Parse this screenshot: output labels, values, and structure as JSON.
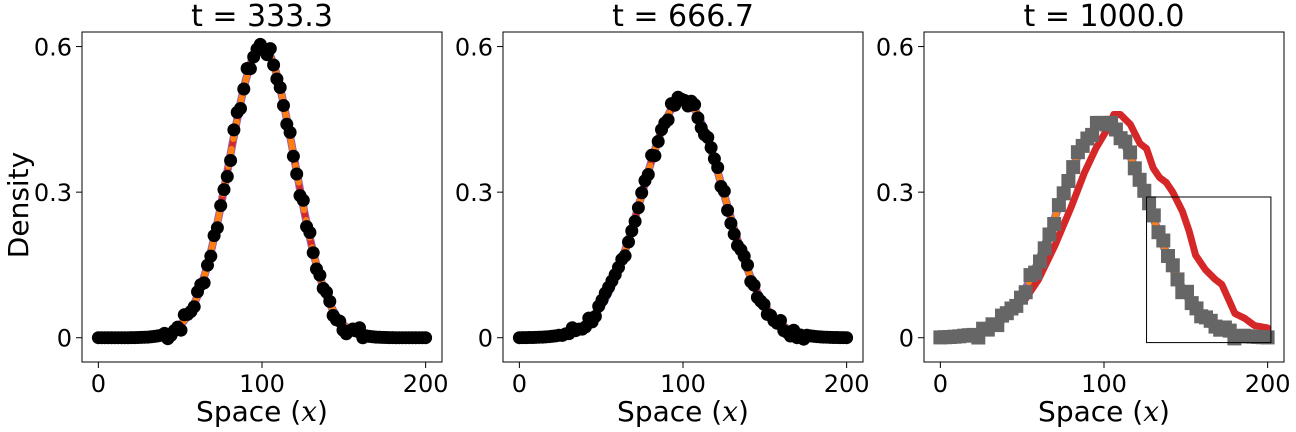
{
  "ylabel": "Density",
  "chart_data": [
    {
      "type": "line",
      "title": "t = 333.3",
      "xlabel": "Space (x)",
      "ylabel": "Density",
      "xlim": [
        -10,
        210
      ],
      "ylim": [
        -0.05,
        0.63
      ],
      "xticks": [
        {
          "v": 0,
          "label": "0"
        },
        {
          "v": 100,
          "label": "100"
        },
        {
          "v": 200,
          "label": "200"
        }
      ],
      "yticks": [
        {
          "v": 0,
          "label": "0"
        },
        {
          "v": 0.3,
          "label": "0.3"
        },
        {
          "v": 0.6,
          "label": "0.6"
        }
      ],
      "curve": {
        "amplitude": 0.6,
        "center": 100,
        "sigma": 20
      },
      "series": [
        {
          "color": "#9467bd",
          "width": 8,
          "dash": "",
          "jitter": 0,
          "shift": 0
        },
        {
          "color": "#d62728",
          "width": 6,
          "dash": "",
          "jitter": 0,
          "shift": 0
        },
        {
          "color": "#ff7f0e",
          "width": 6,
          "dash": "18,10",
          "jitter": 0,
          "shift": 0
        }
      ],
      "markers": {
        "shape": "circle",
        "color": "#000000",
        "count": 100,
        "noise": 0.015
      },
      "inset_box": null
    },
    {
      "type": "line",
      "title": "t = 666.7",
      "xlabel": "Space (x)",
      "ylabel": "",
      "xlim": [
        -10,
        210
      ],
      "ylim": [
        -0.05,
        0.63
      ],
      "xticks": [
        {
          "v": 0,
          "label": "0"
        },
        {
          "v": 100,
          "label": "100"
        },
        {
          "v": 200,
          "label": "200"
        }
      ],
      "yticks": [
        {
          "v": 0,
          "label": "0"
        },
        {
          "v": 0.3,
          "label": "0.3"
        },
        {
          "v": 0.6,
          "label": "0.6"
        }
      ],
      "curve": {
        "amplitude": 0.49,
        "center": 100,
        "sigma": 25
      },
      "series": [
        {
          "color": "#9467bd",
          "width": 8,
          "dash": "",
          "jitter": 0,
          "shift": 0
        },
        {
          "color": "#d62728",
          "width": 6,
          "dash": "",
          "jitter": 0,
          "shift": 0
        },
        {
          "color": "#ff7f0e",
          "width": 6,
          "dash": "18,10",
          "jitter": 0,
          "shift": 0
        }
      ],
      "markers": {
        "shape": "circle",
        "color": "#000000",
        "count": 100,
        "noise": 0.012
      },
      "inset_box": null
    },
    {
      "type": "line",
      "title": "t = 1000.0",
      "xlabel": "Space (x)",
      "ylabel": "",
      "xlim": [
        -10,
        210
      ],
      "ylim": [
        -0.05,
        0.63
      ],
      "xticks": [
        {
          "v": 0,
          "label": "0"
        },
        {
          "v": 100,
          "label": "100"
        },
        {
          "v": 200,
          "label": "200"
        }
      ],
      "yticks": [
        {
          "v": 0,
          "label": "0"
        },
        {
          "v": 0.3,
          "label": "0.3"
        },
        {
          "v": 0.6,
          "label": "0.6"
        }
      ],
      "curve": {
        "amplitude": 0.44,
        "center": 100,
        "sigma": 28
      },
      "series": [
        {
          "color": "#9467bd",
          "width": 8,
          "dash": "",
          "jitter": 0,
          "shift": 0
        },
        {
          "color": "#ff7f0e",
          "width": 6,
          "dash": "18,10",
          "jitter": 0,
          "shift": 0
        }
      ],
      "red_series": {
        "color": "#d62728",
        "width": 7,
        "points": [
          [
            52,
            0.08
          ],
          [
            60,
            0.12
          ],
          [
            70,
            0.19
          ],
          [
            80,
            0.27
          ],
          [
            88,
            0.34
          ],
          [
            95,
            0.39
          ],
          [
            102,
            0.43
          ],
          [
            106,
            0.46
          ],
          [
            110,
            0.46
          ],
          [
            116,
            0.44
          ],
          [
            122,
            0.4
          ],
          [
            126,
            0.39
          ],
          [
            130,
            0.35
          ],
          [
            134,
            0.33
          ],
          [
            138,
            0.32
          ],
          [
            142,
            0.3
          ],
          [
            148,
            0.26
          ],
          [
            152,
            0.22
          ],
          [
            156,
            0.17
          ],
          [
            162,
            0.14
          ],
          [
            168,
            0.12
          ],
          [
            172,
            0.11
          ],
          [
            176,
            0.08
          ],
          [
            180,
            0.05
          ],
          [
            186,
            0.04
          ],
          [
            192,
            0.025
          ],
          [
            200,
            0.02
          ]
        ]
      },
      "markers": {
        "shape": "square",
        "color": "#666666",
        "count": 70,
        "noise": 0.01
      },
      "inset_box": {
        "x0": 126,
        "x1": 202,
        "y0": -0.01,
        "y1": 0.29
      }
    }
  ]
}
